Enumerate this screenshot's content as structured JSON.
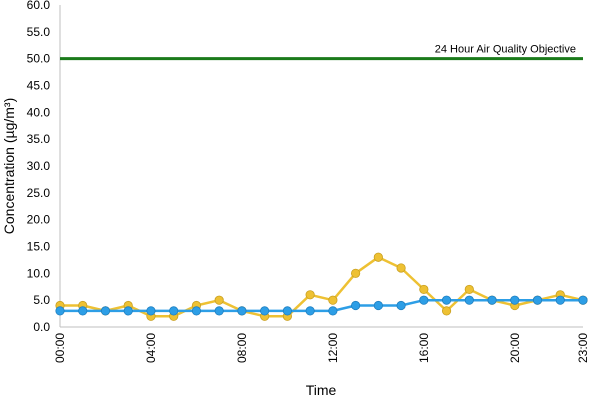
{
  "chart_data": {
    "type": "line",
    "xlabel": "Time",
    "ylabel": "Concentration (µg/m³)",
    "ylim": [
      0,
      60
    ],
    "y_ticks": [
      "0.0",
      "5.0",
      "10.0",
      "15.0",
      "20.0",
      "25.0",
      "30.0",
      "35.0",
      "40.0",
      "45.0",
      "50.0",
      "55.0",
      "60.0"
    ],
    "x": [
      "00:00",
      "01:00",
      "02:00",
      "03:00",
      "04:00",
      "05:00",
      "06:00",
      "07:00",
      "08:00",
      "09:00",
      "10:00",
      "11:00",
      "12:00",
      "13:00",
      "14:00",
      "15:00",
      "16:00",
      "17:00",
      "18:00",
      "19:00",
      "20:00",
      "21:00",
      "22:00",
      "23:00"
    ],
    "x_tick_labels": [
      "00:00",
      "04:00",
      "08:00",
      "12:00",
      "16:00",
      "20:00",
      "23:00"
    ],
    "grid": false,
    "series": [
      {
        "color": "#eec133",
        "values": [
          4,
          4,
          3,
          4,
          2,
          2,
          4,
          5,
          3,
          2,
          2,
          6,
          5,
          10,
          13,
          11,
          7,
          3,
          7,
          5,
          4,
          5,
          6,
          5
        ]
      },
      {
        "color": "#2d9ee6",
        "values": [
          3,
          3,
          3,
          3,
          3,
          3,
          3,
          3,
          3,
          3,
          3,
          3,
          3,
          4,
          4,
          4,
          5,
          5,
          5,
          5,
          5,
          5,
          5,
          5
        ]
      }
    ],
    "reference_line": {
      "label": "24 Hour Air Quality Objective",
      "value": 50,
      "color": "#1a7a1a"
    }
  }
}
